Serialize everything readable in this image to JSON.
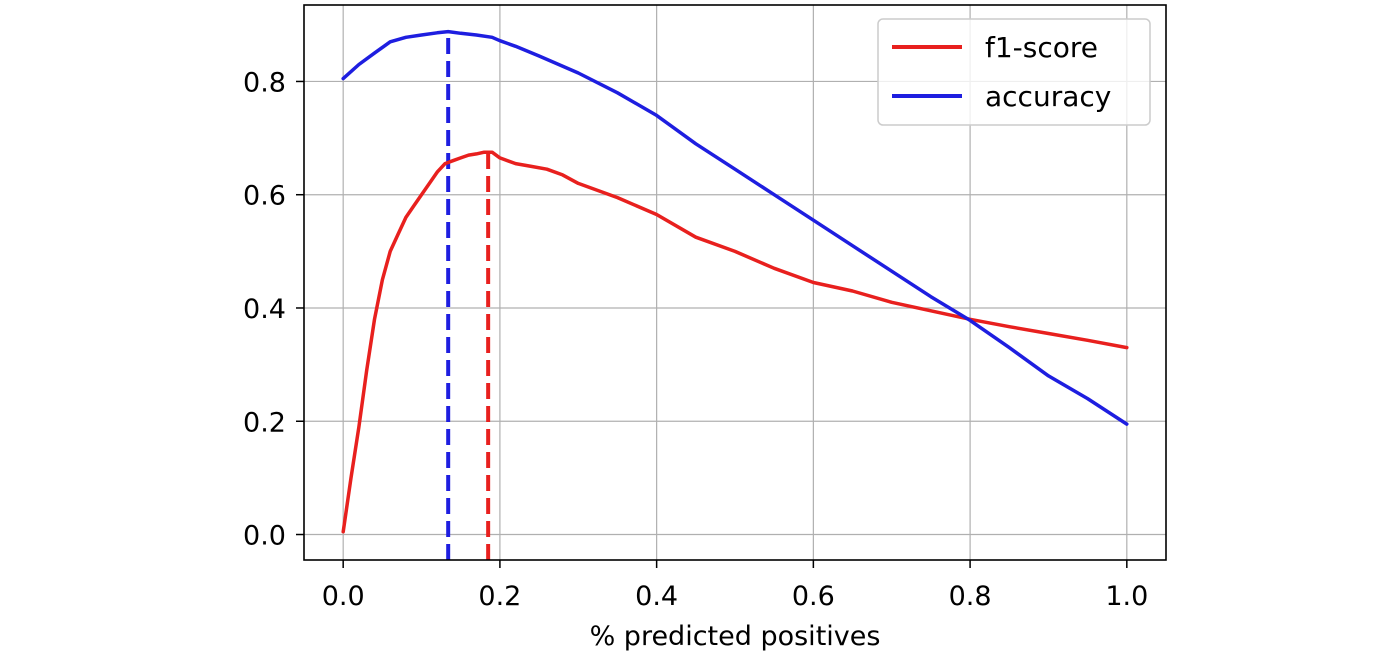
{
  "chart_data": {
    "type": "line",
    "title": "",
    "xlabel": "% predicted positives",
    "ylabel": "",
    "xlim": [
      -0.05,
      1.05
    ],
    "ylim": [
      -0.045,
      0.935
    ],
    "grid": true,
    "legend_position": "top-right",
    "x_ticks": [
      0.0,
      0.2,
      0.4,
      0.6,
      0.8,
      1.0
    ],
    "x_tick_labels": [
      "0.0",
      "0.2",
      "0.4",
      "0.6",
      "0.8",
      "1.0"
    ],
    "y_ticks": [
      0.0,
      0.2,
      0.4,
      0.6,
      0.8
    ],
    "y_tick_labels": [
      "0.0",
      "0.2",
      "0.4",
      "0.6",
      "0.8"
    ],
    "series": [
      {
        "name": "f1-score",
        "color": "#e8201e",
        "x": [
          0.0,
          0.01,
          0.02,
          0.03,
          0.04,
          0.05,
          0.06,
          0.07,
          0.08,
          0.09,
          0.1,
          0.11,
          0.12,
          0.13,
          0.14,
          0.15,
          0.16,
          0.17,
          0.18,
          0.19,
          0.2,
          0.22,
          0.24,
          0.26,
          0.28,
          0.3,
          0.35,
          0.4,
          0.45,
          0.5,
          0.55,
          0.6,
          0.65,
          0.7,
          0.75,
          0.8,
          0.85,
          0.9,
          0.95,
          1.0
        ],
        "y": [
          0.005,
          0.1,
          0.19,
          0.29,
          0.38,
          0.45,
          0.5,
          0.53,
          0.56,
          0.58,
          0.6,
          0.62,
          0.64,
          0.655,
          0.66,
          0.665,
          0.67,
          0.672,
          0.675,
          0.675,
          0.665,
          0.655,
          0.65,
          0.645,
          0.635,
          0.62,
          0.595,
          0.565,
          0.525,
          0.5,
          0.47,
          0.445,
          0.43,
          0.41,
          0.395,
          0.38,
          0.367,
          0.355,
          0.343,
          0.33
        ]
      },
      {
        "name": "accuracy",
        "color": "#1e1ee0",
        "x": [
          0.0,
          0.02,
          0.04,
          0.06,
          0.08,
          0.1,
          0.12,
          0.134,
          0.15,
          0.17,
          0.19,
          0.2,
          0.22,
          0.25,
          0.3,
          0.35,
          0.4,
          0.45,
          0.5,
          0.55,
          0.6,
          0.65,
          0.7,
          0.75,
          0.8,
          0.85,
          0.9,
          0.95,
          1.0
        ],
        "y": [
          0.805,
          0.83,
          0.85,
          0.87,
          0.878,
          0.882,
          0.886,
          0.888,
          0.885,
          0.882,
          0.878,
          0.872,
          0.862,
          0.845,
          0.815,
          0.78,
          0.74,
          0.69,
          0.645,
          0.6,
          0.555,
          0.51,
          0.465,
          0.42,
          0.378,
          0.33,
          0.28,
          0.24,
          0.195
        ]
      }
    ],
    "markers": [
      {
        "name": "accuracy-max",
        "x": 0.134,
        "y_top": 0.888,
        "color": "#1e1ee0",
        "style": "dashed"
      },
      {
        "name": "f1-max",
        "x": 0.185,
        "y_top": 0.675,
        "color": "#e8201e",
        "style": "dashed"
      }
    ]
  }
}
